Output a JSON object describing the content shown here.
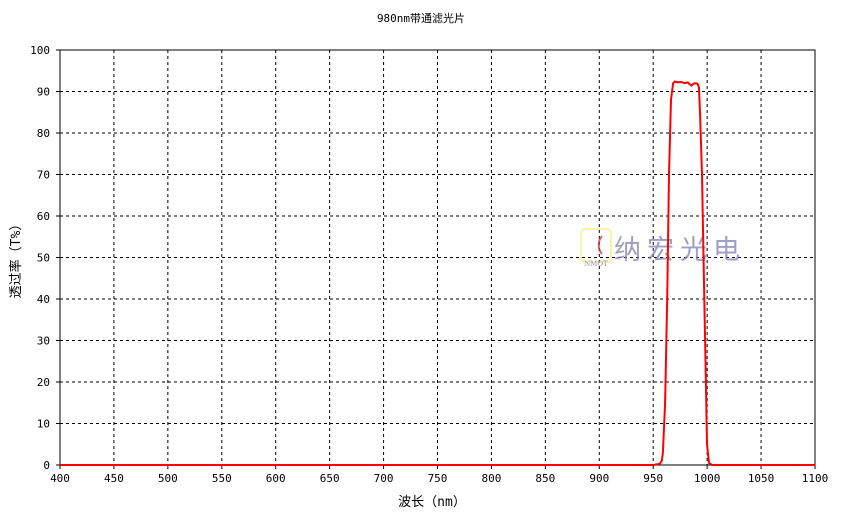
{
  "chart_data": {
    "type": "line",
    "title": "980nm带通滤光片",
    "xlabel": "波长（nm）",
    "ylabel": "透过率（T%）",
    "xlim": [
      400,
      1100
    ],
    "ylim": [
      0,
      100
    ],
    "xticks": [
      400,
      450,
      500,
      550,
      600,
      650,
      700,
      750,
      800,
      850,
      900,
      950,
      1000,
      1050,
      1100
    ],
    "yticks": [
      0,
      10,
      20,
      30,
      40,
      50,
      60,
      70,
      80,
      90,
      100
    ],
    "grid": true,
    "series": [
      {
        "color": "#ff0000",
        "x": [
          400,
          950,
          956,
          958,
          959,
          961,
          963,
          964.6,
          966.5,
          968.4,
          970,
          973,
          976,
          979,
          982,
          984,
          985.5,
          987,
          989,
          991,
          992.4,
          993.4,
          995.2,
          997,
          998.5,
          999.9,
          1001.7,
          1004.5,
          1100
        ],
        "y": [
          0,
          0,
          0.3,
          1,
          3,
          15,
          40,
          70,
          88,
          92,
          92.4,
          92.2,
          92.3,
          92,
          92.2,
          91.7,
          91.4,
          91.8,
          92,
          91.9,
          91,
          85,
          70,
          45,
          25,
          5,
          0.5,
          0,
          0
        ]
      }
    ]
  },
  "watermark": {
    "logo_text": "NMOT",
    "text": "纳宏光电"
  }
}
